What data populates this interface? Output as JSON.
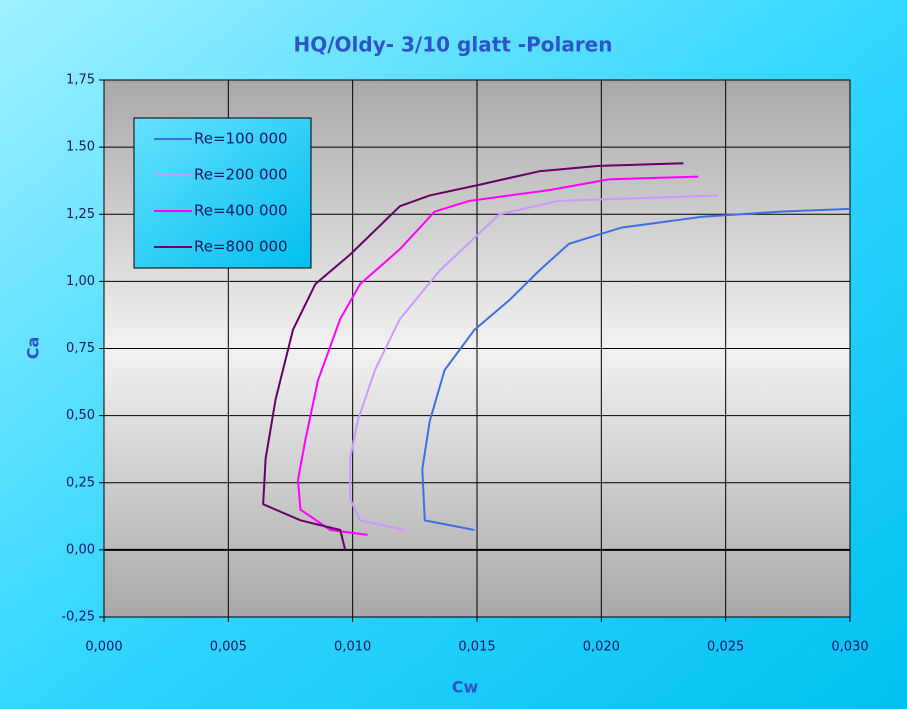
{
  "chart_data": {
    "type": "line",
    "title": "HQ/Oldy- 3/10 glatt -Polaren",
    "x_label": "Cw",
    "y_label": "Ca",
    "xlim": [
      0,
      0.03
    ],
    "ylim": [
      -0.25,
      1.75
    ],
    "xticks": [
      {
        "value": 0,
        "label": "0,000"
      },
      {
        "value": 0.005,
        "label": "0,005"
      },
      {
        "value": 0.01,
        "label": "0,010"
      },
      {
        "value": 0.015,
        "label": "0,015"
      },
      {
        "value": 0.02,
        "label": "0,020"
      },
      {
        "value": 0.025,
        "label": "0,025"
      },
      {
        "value": 0.03,
        "label": "0,030"
      }
    ],
    "yticks": [
      {
        "value": -0.25,
        "label": "-0,25"
      },
      {
        "value": 0,
        "label": "0,00"
      },
      {
        "value": 0.25,
        "label": "0,25"
      },
      {
        "value": 0.5,
        "label": "0,50"
      },
      {
        "value": 0.75,
        "label": "0,75"
      },
      {
        "value": 1,
        "label": "1,00"
      },
      {
        "value": 1.25,
        "label": "1,25"
      },
      {
        "value": 1.5,
        "label": "1.50"
      },
      {
        "value": 1.75,
        "label": "1,75"
      }
    ],
    "grid": true,
    "legend": "upper left",
    "series": [
      {
        "name": "Re=100 000",
        "color": "#3f6fe0",
        "x": [
          0.0149,
          0.0129,
          0.0128,
          0.0131,
          0.0137,
          0.0149,
          0.0163,
          0.0175,
          0.0187,
          0.0208,
          0.024,
          0.0272,
          0.03
        ],
        "values": [
          0.074,
          0.11,
          0.3,
          0.48,
          0.67,
          0.82,
          0.93,
          1.04,
          1.14,
          1.2,
          1.24,
          1.26,
          1.27
        ]
      },
      {
        "name": "Re=200 000",
        "color": "#cc99ff",
        "x": [
          0.0121,
          0.0103,
          0.0099,
          0.0099,
          0.0102,
          0.0109,
          0.0119,
          0.0135,
          0.0159,
          0.0183,
          0.0216,
          0.0247
        ],
        "values": [
          0.074,
          0.11,
          0.19,
          0.34,
          0.48,
          0.67,
          0.86,
          1.04,
          1.25,
          1.3,
          1.31,
          1.32
        ]
      },
      {
        "name": "Re=400 000",
        "color": "#ff00ff",
        "x": [
          0.0106,
          0.0091,
          0.0079,
          0.0078,
          0.0081,
          0.0086,
          0.0095,
          0.0103,
          0.0119,
          0.0133,
          0.0147,
          0.0179,
          0.0203,
          0.0239
        ],
        "values": [
          0.056,
          0.074,
          0.15,
          0.26,
          0.41,
          0.63,
          0.86,
          0.99,
          1.12,
          1.26,
          1.3,
          1.34,
          1.38,
          1.39
        ]
      },
      {
        "name": "Re=800 000",
        "color": "#660066",
        "x": [
          0.0097,
          0.0095,
          0.0079,
          0.0064,
          0.0065,
          0.0069,
          0.0076,
          0.0085,
          0.0099,
          0.0109,
          0.0119,
          0.0131,
          0.0151,
          0.0175,
          0.0199,
          0.0233
        ],
        "values": [
          0,
          0.074,
          0.11,
          0.17,
          0.34,
          0.56,
          0.82,
          0.99,
          1.1,
          1.19,
          1.28,
          1.32,
          1.36,
          1.41,
          1.43,
          1.44
        ]
      }
    ]
  }
}
